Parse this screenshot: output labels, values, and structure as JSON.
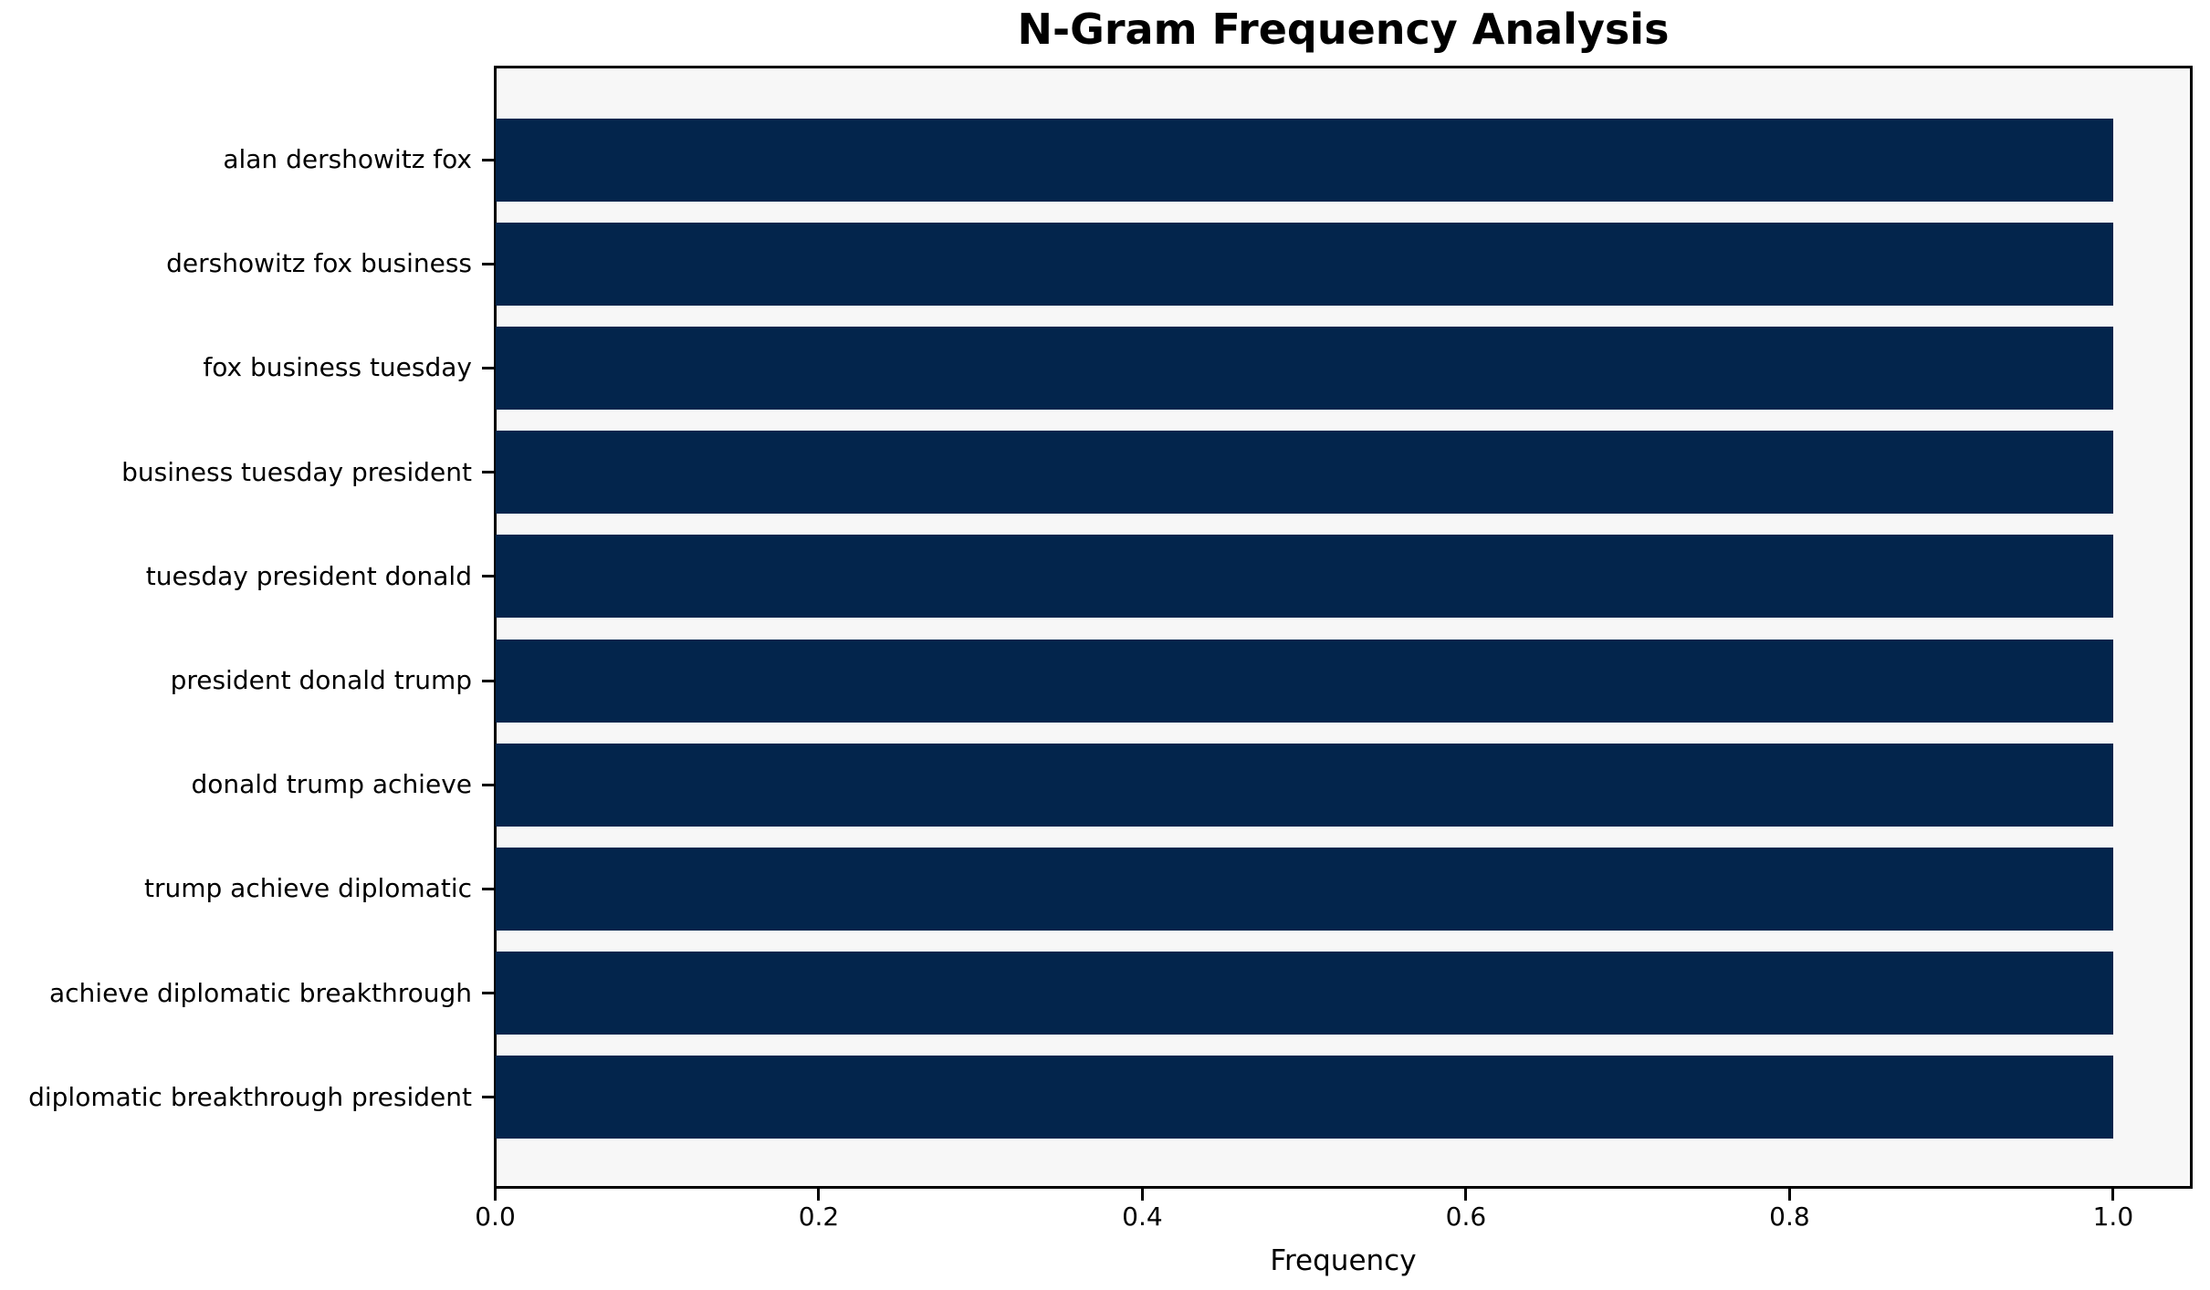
{
  "chart_data": {
    "type": "bar",
    "orientation": "horizontal",
    "title": "N-Gram Frequency Analysis",
    "xlabel": "Frequency",
    "ylabel": "",
    "categories": [
      "alan dershowitz fox",
      "dershowitz fox business",
      "fox business tuesday",
      "business tuesday president",
      "tuesday president donald",
      "president donald trump",
      "donald trump achieve",
      "trump achieve diplomatic",
      "achieve diplomatic breakthrough",
      "diplomatic breakthrough president"
    ],
    "values": [
      1.0,
      1.0,
      1.0,
      1.0,
      1.0,
      1.0,
      1.0,
      1.0,
      1.0,
      1.0
    ],
    "xlim": [
      0,
      1.05
    ],
    "xticks": [
      0.0,
      0.2,
      0.4,
      0.6,
      0.8,
      1.0
    ],
    "xtick_labels": [
      "0.0",
      "0.2",
      "0.4",
      "0.6",
      "0.8",
      "1.0"
    ],
    "grid": false,
    "legend": null,
    "bar_color": "#03254c",
    "plot_background": "#f7f7f7",
    "figure_background": "#ffffff",
    "spine_color": "#000000",
    "text_color": "#000000"
  }
}
